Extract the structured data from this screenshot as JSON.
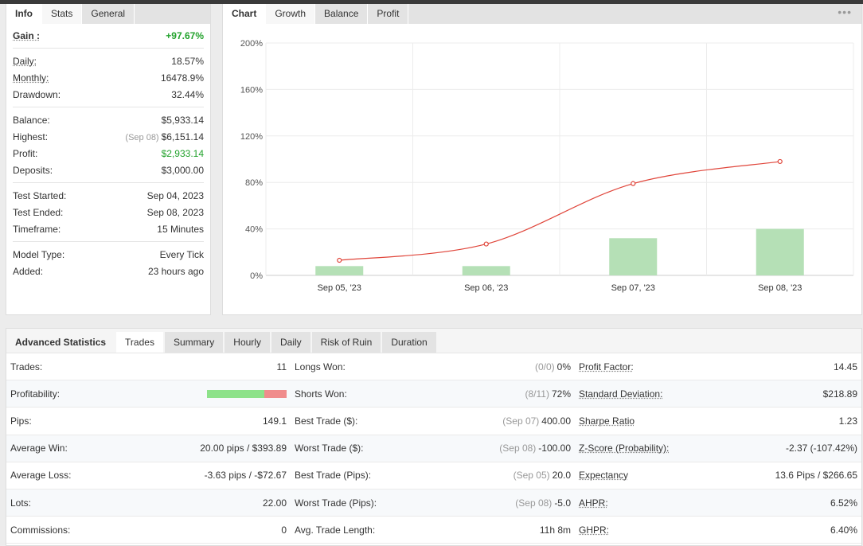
{
  "info_panel": {
    "tabs": [
      "Info",
      "Stats",
      "General"
    ],
    "gain": {
      "label": "Gain :",
      "value": "+97.67%"
    },
    "rows_group1": [
      {
        "label": "Daily:",
        "value": "18.57%"
      },
      {
        "label": "Monthly:",
        "value": "16478.9%"
      },
      {
        "label": "Drawdown:",
        "value": "32.44%"
      }
    ],
    "balance": {
      "label": "Balance:",
      "value": "$5,933.14"
    },
    "highest": {
      "label": "Highest:",
      "date": "(Sep 08)",
      "value": "$6,151.14"
    },
    "profit": {
      "label": "Profit:",
      "value": "$2,933.14"
    },
    "deposits": {
      "label": "Deposits:",
      "value": "$3,000.00"
    },
    "rows_group3": [
      {
        "label": "Test Started:",
        "value": "Sep 04, 2023"
      },
      {
        "label": "Test Ended:",
        "value": "Sep 08, 2023"
      },
      {
        "label": "Timeframe:",
        "value": "15 Minutes"
      }
    ],
    "rows_group4": [
      {
        "label": "Model Type:",
        "value": "Every Tick"
      },
      {
        "label": "Added:",
        "value": "23 hours ago"
      }
    ]
  },
  "chart_panel": {
    "tabs": [
      "Chart",
      "Growth",
      "Balance",
      "Profit"
    ],
    "menu": "•••"
  },
  "chart_data": {
    "type": "bar",
    "categories": [
      "Sep 05, '23",
      "Sep 06, '23",
      "Sep 07, '23",
      "Sep 08, '23"
    ],
    "series": [
      {
        "type": "bar",
        "values": [
          8,
          8,
          32,
          40
        ],
        "color": "#b5e0b6"
      },
      {
        "type": "line",
        "values": [
          13,
          27,
          79,
          98
        ],
        "color": "#e0453a"
      }
    ],
    "yticks": [
      "0%",
      "40%",
      "80%",
      "120%",
      "160%",
      "200%"
    ],
    "ylim": [
      0,
      200
    ],
    "grid": true
  },
  "advanced": {
    "tabs": [
      "Advanced Statistics",
      "Trades",
      "Summary",
      "Hourly",
      "Daily",
      "Risk of Ruin",
      "Duration"
    ],
    "rows": [
      {
        "l1": "Trades:",
        "v1": "11",
        "l2": "Longs Won:",
        "m2": "(0/0)",
        "v2": "0%",
        "l3": "Profit Factor:",
        "v3": "14.45"
      },
      {
        "l1": "Profitability:",
        "v1": "",
        "l2": "Shorts Won:",
        "m2": "(8/11)",
        "v2": "72%",
        "l3": "Standard Deviation:",
        "v3": "$218.89"
      },
      {
        "l1": "Pips:",
        "v1": "149.1",
        "l2": "Best Trade ($):",
        "m2": "(Sep 07)",
        "v2": "400.00",
        "l3": "Sharpe Ratio",
        "v3": "1.23"
      },
      {
        "l1": "Average Win:",
        "v1": "20.00 pips / $393.89",
        "l2": "Worst Trade ($):",
        "m2": "(Sep 08)",
        "v2": "-100.00",
        "l3": "Z-Score (Probability):",
        "v3": "-2.37 (-107.42%)"
      },
      {
        "l1": "Average Loss:",
        "v1": "-3.63 pips / -$72.67",
        "l2": "Best Trade (Pips):",
        "m2": "(Sep 05)",
        "v2": "20.0",
        "l3": "Expectancy",
        "v3": "13.6 Pips / $266.65"
      },
      {
        "l1": "Lots:",
        "v1": "22.00",
        "l2": "Worst Trade (Pips):",
        "m2": "(Sep 08)",
        "v2": "-5.0",
        "l3": "AHPR:",
        "v3": "6.52%"
      },
      {
        "l1": "Commissions:",
        "v1": "0",
        "l2": "Avg. Trade Length:",
        "m2": "",
        "v2": "11h 8m",
        "l3": "GHPR:",
        "v3": "6.40%"
      }
    ],
    "profitability_win_fraction": 0.72,
    "colors": {
      "win": "#8de28a",
      "loss": "#f08c8c",
      "positive": "#22a22c"
    }
  }
}
